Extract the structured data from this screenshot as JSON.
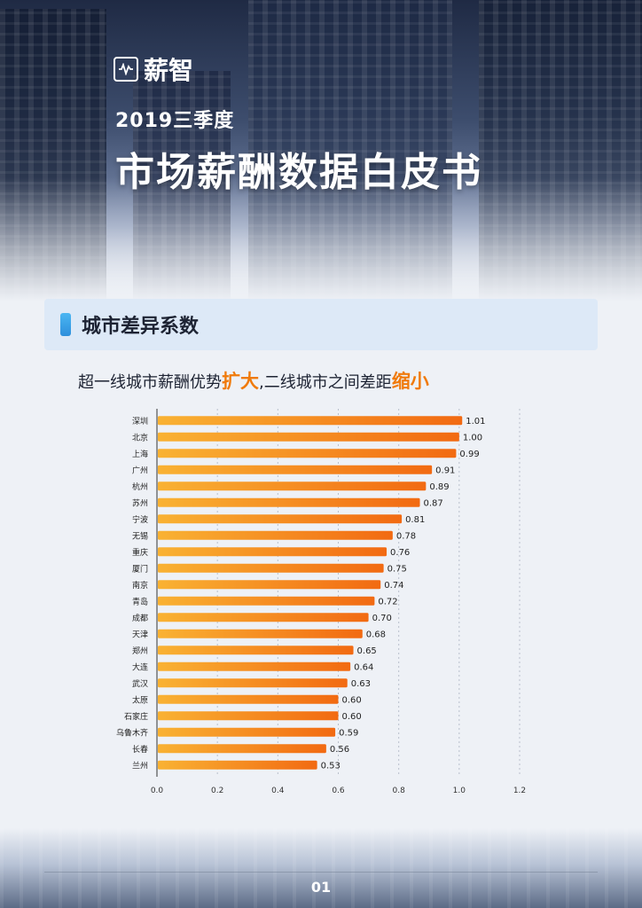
{
  "brand": {
    "logo_text": "薪智"
  },
  "header": {
    "subtitle": "2019三季度",
    "title": "市场薪酬数据白皮书"
  },
  "section": {
    "title": "城市差异系数"
  },
  "headline": {
    "part1": "超一线城市薪酬优势",
    "em1": "扩大",
    "part2": ",二线城市之间差距",
    "em2": "缩小"
  },
  "colors": {
    "accent": "#f07a0a",
    "bar_start": "#f9b233",
    "bar_end": "#f26a12",
    "section_bg": "#dde9f7"
  },
  "chart_data": {
    "type": "bar",
    "orientation": "horizontal",
    "categories": [
      "深圳",
      "北京",
      "上海",
      "广州",
      "杭州",
      "苏州",
      "宁波",
      "无锡",
      "重庆",
      "厦门",
      "南京",
      "青岛",
      "成都",
      "天津",
      "郑州",
      "大连",
      "武汉",
      "太原",
      "石家庄",
      "乌鲁木齐",
      "长春",
      "兰州"
    ],
    "values": [
      1.01,
      1.0,
      0.99,
      0.91,
      0.89,
      0.87,
      0.81,
      0.78,
      0.76,
      0.75,
      0.74,
      0.72,
      0.7,
      0.68,
      0.65,
      0.64,
      0.63,
      0.6,
      0.6,
      0.59,
      0.56,
      0.53
    ],
    "value_labels": [
      "1.01",
      "1.00",
      "0.99",
      "0.91",
      "0.89",
      "0.87",
      "0.81",
      "0.78",
      "0.76",
      "0.75",
      "0.74",
      "0.72",
      "0.70",
      "0.68",
      "0.65",
      "0.64",
      "0.63",
      "0.60",
      "0.60",
      "0.59",
      "0.56",
      "0.53"
    ],
    "xlim": [
      0,
      1.2
    ],
    "xticks": [
      "0.0",
      "0.2",
      "0.4",
      "0.6",
      "0.8",
      "1.0",
      "1.2"
    ],
    "grid": "vertical dotted",
    "title": "",
    "xlabel": "",
    "ylabel": ""
  },
  "footer": {
    "page_number": "01"
  }
}
